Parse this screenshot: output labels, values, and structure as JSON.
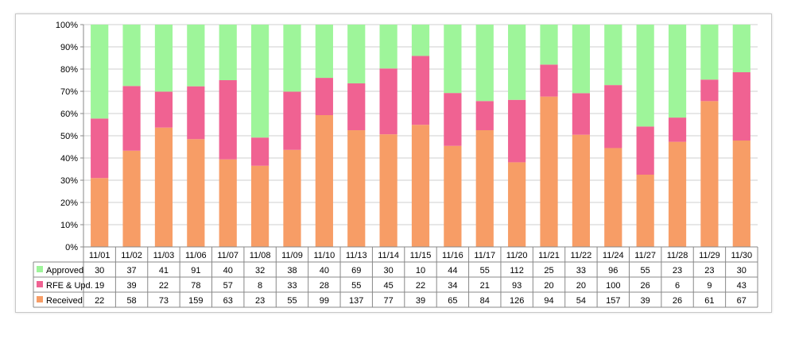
{
  "chart_data": {
    "type": "bar",
    "stacked": "percent",
    "categories": [
      "11/01",
      "11/02",
      "11/03",
      "11/06",
      "11/07",
      "11/08",
      "11/09",
      "11/10",
      "11/13",
      "11/14",
      "11/15",
      "11/16",
      "11/17",
      "11/20",
      "11/21",
      "11/22",
      "11/24",
      "11/27",
      "11/28",
      "11/29",
      "11/30"
    ],
    "series": [
      {
        "name": "Received",
        "color": "#f79d66",
        "values": [
          22,
          58,
          73,
          159,
          63,
          23,
          55,
          99,
          137,
          77,
          39,
          65,
          84,
          126,
          94,
          54,
          157,
          39,
          26,
          61,
          67
        ]
      },
      {
        "name": "RFE & Upd.",
        "color": "#f06292",
        "values": [
          19,
          39,
          22,
          78,
          57,
          8,
          33,
          28,
          55,
          45,
          22,
          34,
          21,
          93,
          20,
          20,
          100,
          26,
          6,
          9,
          43
        ]
      },
      {
        "name": "Approved",
        "color": "#9ef59a",
        "values": [
          30,
          37,
          41,
          91,
          40,
          32,
          38,
          40,
          69,
          30,
          10,
          44,
          55,
          112,
          25,
          33,
          96,
          55,
          23,
          23,
          30
        ]
      }
    ],
    "ylim": [
      0,
      100
    ],
    "yticks": [
      "0%",
      "10%",
      "20%",
      "30%",
      "40%",
      "50%",
      "60%",
      "70%",
      "80%",
      "90%",
      "100%"
    ],
    "grid": true,
    "legend": "data-table-left"
  }
}
